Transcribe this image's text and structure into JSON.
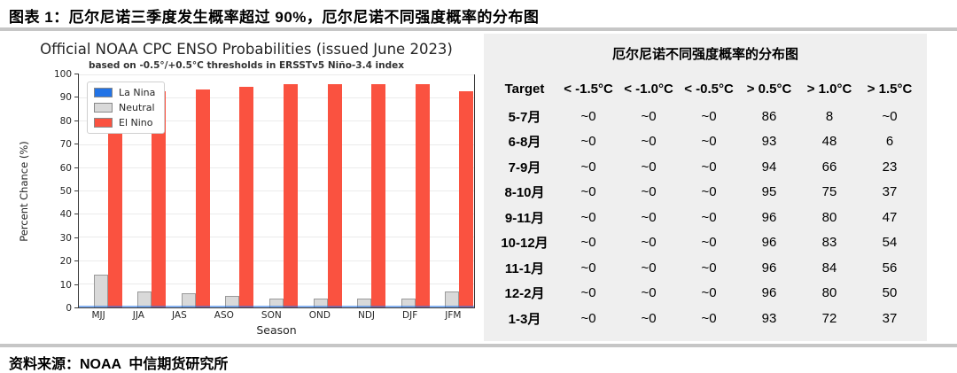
{
  "page": {
    "title": "图表 1：厄尔尼诺三季度发生概率超过 90%，厄尔尼诺不同强度概率的分布图",
    "source": "资料来源：NOAA  中信期货研究所"
  },
  "chart_data": {
    "type": "bar",
    "title": "Official NOAA CPC ENSO Probabilities (issued June 2023)",
    "subtitle": "based on -0.5°/+0.5°C thresholds in ERSSTv5 Niño-3.4 index",
    "xlabel": "Season",
    "ylabel": "Percent Chance (%)",
    "ylim": [
      0,
      100
    ],
    "ytick_step": 10,
    "grid": true,
    "legend_position": "upper-left",
    "categories": [
      "MJJ",
      "JJA",
      "JAS",
      "ASO",
      "SON",
      "OND",
      "NDJ",
      "DJF",
      "JFM"
    ],
    "series": [
      {
        "name": "La Nina",
        "color": "#2273e6",
        "values": [
          0,
          0,
          0,
          0,
          0,
          0,
          0,
          0,
          0
        ]
      },
      {
        "name": "Neutral",
        "color": "#d9d9d9",
        "values": [
          14,
          7,
          6,
          5,
          4,
          4,
          4,
          4,
          7
        ]
      },
      {
        "name": "El Nino",
        "color": "#fa5240",
        "values": [
          86,
          93,
          94,
          95,
          96,
          96,
          96,
          96,
          93
        ]
      }
    ]
  },
  "table": {
    "title": "厄尔尼诺不同强度概率的分布图",
    "headers": [
      "Target",
      "< -1.5°C",
      "< -1.0°C",
      "< -0.5°C",
      "> 0.5°C",
      "> 1.0°C",
      "> 1.5°C"
    ],
    "rows": [
      {
        "label": "5-7月",
        "values": [
          "~0",
          "~0",
          "~0",
          "86",
          "8",
          "~0"
        ]
      },
      {
        "label": "6-8月",
        "values": [
          "~0",
          "~0",
          "~0",
          "93",
          "48",
          "6"
        ]
      },
      {
        "label": "7-9月",
        "values": [
          "~0",
          "~0",
          "~0",
          "94",
          "66",
          "23"
        ]
      },
      {
        "label": "8-10月",
        "values": [
          "~0",
          "~0",
          "~0",
          "95",
          "75",
          "37"
        ]
      },
      {
        "label": "9-11月",
        "values": [
          "~0",
          "~0",
          "~0",
          "96",
          "80",
          "47"
        ]
      },
      {
        "label": "10-12月",
        "values": [
          "~0",
          "~0",
          "~0",
          "96",
          "83",
          "54"
        ]
      },
      {
        "label": "11-1月",
        "values": [
          "~0",
          "~0",
          "~0",
          "96",
          "84",
          "56"
        ]
      },
      {
        "label": "12-2月",
        "values": [
          "~0",
          "~0",
          "~0",
          "96",
          "80",
          "50"
        ]
      },
      {
        "label": "1-3月",
        "values": [
          "~0",
          "~0",
          "~0",
          "93",
          "72",
          "37"
        ]
      }
    ]
  }
}
